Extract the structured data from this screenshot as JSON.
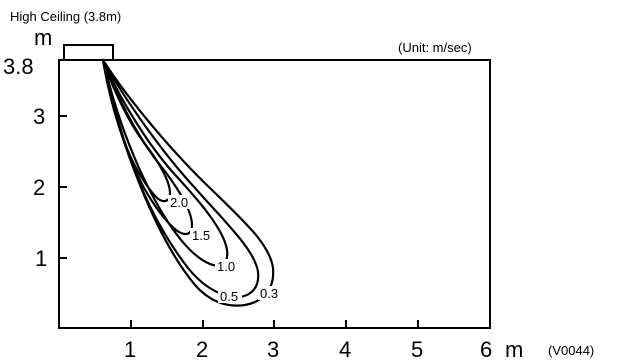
{
  "title": "High Ceiling (3.8m)",
  "unit_note": "(Unit: m/sec)",
  "figure_code": "(V0044)",
  "y_unit": "m",
  "x_unit": "m",
  "ceiling_label": "3.8",
  "x_ticks": [
    "1",
    "2",
    "3",
    "4",
    "5",
    "6"
  ],
  "y_ticks": [
    "1",
    "2",
    "3"
  ],
  "contours": [
    {
      "label": "2.0"
    },
    {
      "label": "1.5"
    },
    {
      "label": "1.0"
    },
    {
      "label": "0.5"
    },
    {
      "label": "0.3"
    }
  ],
  "chart_data": {
    "type": "contour",
    "title": "High Ceiling (3.8m)",
    "unit": "m/sec",
    "xlabel": "m",
    "ylabel": "m",
    "xlim": [
      0,
      6
    ],
    "ylim": [
      0,
      3.8
    ],
    "source_point": [
      0.6,
      3.8
    ],
    "iso_velocity_levels": [
      2.0,
      1.5,
      1.0,
      0.5,
      0.3
    ]
  }
}
